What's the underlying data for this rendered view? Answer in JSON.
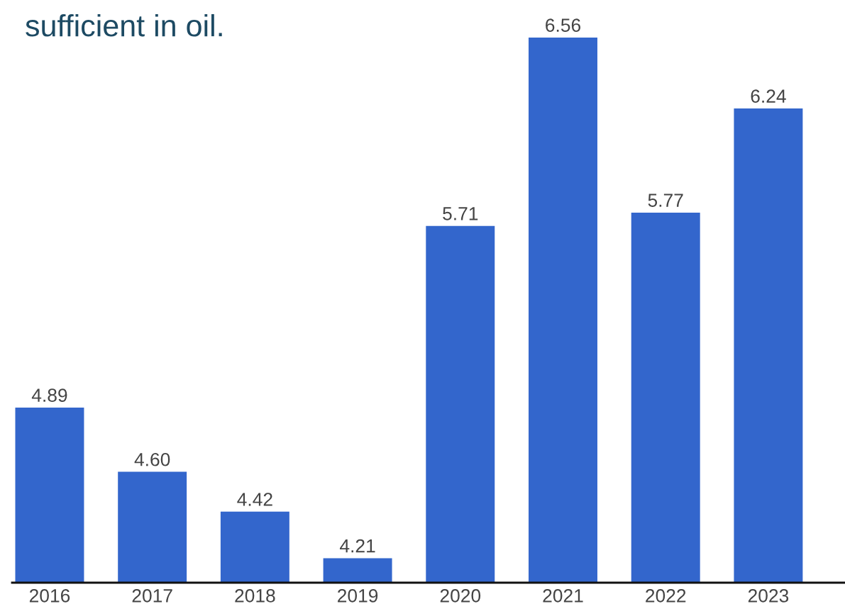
{
  "chart_data": {
    "type": "bar",
    "title": "sufficient in oil.",
    "categories": [
      "2016",
      "2017",
      "2018",
      "2019",
      "2020",
      "2021",
      "2022",
      "2023"
    ],
    "values": [
      4.89,
      4.6,
      4.42,
      4.21,
      5.71,
      6.56,
      5.77,
      6.24
    ],
    "value_labels": [
      "4.89",
      "4.60",
      "4.42",
      "4.21",
      "5.71",
      "6.56",
      "5.77",
      "6.24"
    ],
    "color": "#3366cc",
    "tick_labels": "x",
    "grid": false,
    "legend": false
  }
}
